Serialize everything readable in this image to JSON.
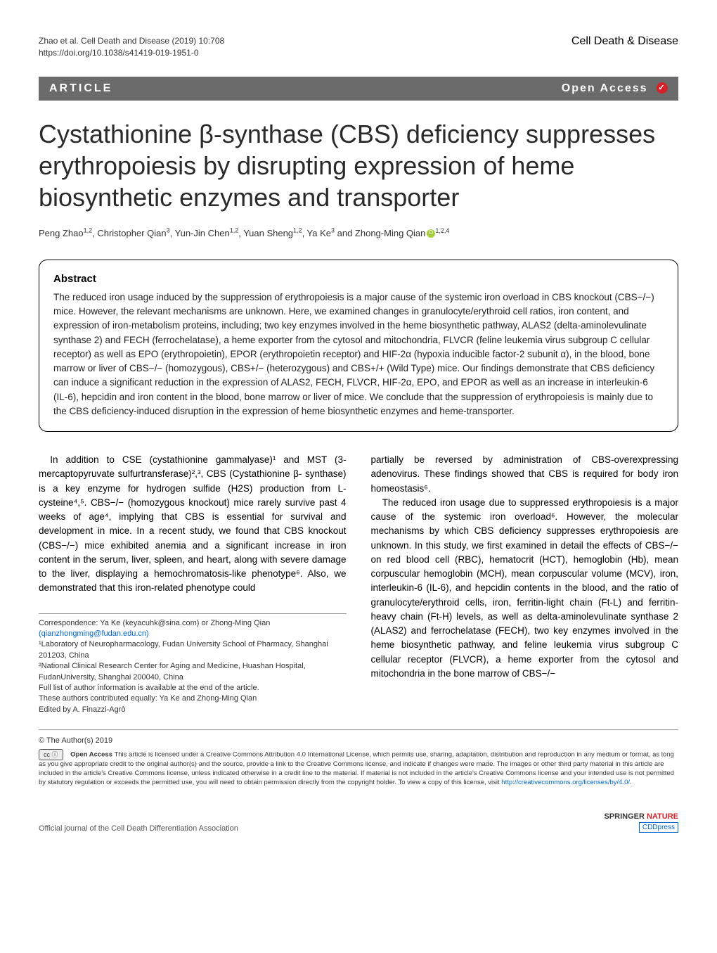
{
  "header": {
    "citation_line1": "Zhao et al. Cell Death and Disease          (2019) 10:708",
    "citation_line2": "https://doi.org/10.1038/s41419-019-1951-0",
    "journal": "Cell Death & Disease"
  },
  "article_bar": {
    "label": "ARTICLE",
    "open_access": "Open Access",
    "bar_bg": "#6b6b6b",
    "bar_fg": "#ffffff"
  },
  "title": "Cystathionine β-synthase (CBS) deficiency suppresses erythropoiesis by disrupting expression of heme biosynthetic enzymes and transporter",
  "authors_html": "Peng Zhao<sup>1,2</sup>, Christopher Qian<sup>3</sup>, Yun-Jin Chen<sup>1,2</sup>, Yuan Sheng<sup>1,2</sup>, Ya Ke<sup>3</sup> and Zhong-Ming Qian",
  "author_last_sup": "1,2,4",
  "abstract": {
    "heading": "Abstract",
    "text": "The reduced iron usage induced by the suppression of erythropoiesis is a major cause of the systemic iron overload in CBS knockout (CBS−/−) mice. However, the relevant mechanisms are unknown. Here, we examined changes in granulocyte/erythroid cell ratios, iron content, and expression of iron-metabolism proteins, including; two key enzymes involved in the heme biosynthetic pathway, ALAS2 (delta-aminolevulinate synthase 2) and FECH (ferrochelatase), a heme exporter from the cytosol and mitochondria, FLVCR (feline leukemia virus subgroup C cellular receptor) as well as EPO (erythropoietin), EPOR (erythropoietin receptor) and HIF-2α (hypoxia inducible factor-2 subunit α), in the blood, bone marrow or liver of CBS−/− (homozygous), CBS+/− (heterozygous) and CBS+/+ (Wild Type) mice. Our findings demonstrate that CBS deficiency can induce a significant reduction in the expression of ALAS2, FECH, FLVCR, HIF-2α, EPO, and EPOR as well as an increase in interleukin-6 (IL-6), hepcidin and iron content in the blood, bone marrow or liver of mice. We conclude that the suppression of erythropoiesis is mainly due to the CBS deficiency-induced disruption in the expression of heme biosynthetic enzymes and heme-transporter."
  },
  "body": {
    "left": {
      "p1": "In addition to CSE (cystathionine gammalyase)¹ and MST (3-mercaptopyruvate sulfurtransferase)²,³, CBS (Cystathionine β- synthase) is a key enzyme for hydrogen sulfide (H2S) production from L-cysteine⁴,⁵. CBS−/− (homozygous knockout) mice rarely survive past 4 weeks of age⁴, implying that CBS is essential for survival and development in mice. In a recent study, we found that CBS knockout (CBS−/−) mice exhibited anemia and a significant increase in iron content in the serum, liver, spleen, and heart, along with severe damage to the liver, displaying a hemochromatosis-like phenotype⁶. Also, we demonstrated that this iron-related phenotype could"
    },
    "right": {
      "p1": "partially be reversed by administration of CBS-overexpressing adenovirus. These findings showed that CBS is required for body iron homeostasis⁶.",
      "p2": "The reduced iron usage due to suppressed erythropoiesis is a major cause of the systemic iron overload⁶. However, the molecular mechanisms by which CBS deficiency suppresses erythropoiesis are unknown. In this study, we first examined in detail the effects of CBS−/− on red blood cell (RBC), hematocrit (HCT), hemoglobin (Hb), mean corpuscular hemoglobin (MCH), mean corpuscular volume (MCV), iron, interleukin-6 (IL-6), and hepcidin contents in the blood, and the ratio of granulocyte/erythroid cells, iron, ferritin-light chain (Ft-L) and ferritin-heavy chain (Ft-H) levels, as well as delta-aminolevulinate synthase 2 (ALAS2) and ferrochelatase (FECH), two key enzymes involved in the heme biosynthetic pathway, and feline leukemia virus subgroup C cellular receptor (FLVCR), a heme exporter from the cytosol and mitochondria in the bone marrow of CBS−/−"
    }
  },
  "correspondence": {
    "line1": "Correspondence: Ya Ke (keyacuhk@sina.com) or Zhong-Ming Qian",
    "email2": "(qianzhongming@fudan.edu.cn)",
    "aff1": "¹Laboratory of Neuropharmacology, Fudan University School of Pharmacy, Shanghai 201203, China",
    "aff2": "²National Clinical Research Center for Aging and Medicine, Huashan Hospital, FudanUniversity, Shanghai 200040, China",
    "full_list": "Full list of author information is available at the end of the article.",
    "equal": "These authors contributed equally: Ya Ke and Zhong-Ming Qian",
    "edited": "Edited by A. Finazzi-Agrò"
  },
  "license": {
    "copyright": "© The Author(s) 2019",
    "cc_label": "cc ⓘ",
    "bold_lead": "Open Access",
    "text": " This article is licensed under a Creative Commons Attribution 4.0 International License, which permits use, sharing, adaptation, distribution and reproduction in any medium or format, as long as you give appropriate credit to the original author(s) and the source, provide a link to the Creative Commons license, and indicate if changes were made. The images or other third party material in this article are included in the article's Creative Commons license, unless indicated otherwise in a credit line to the material. If material is not included in the article's Creative Commons license and your intended use is not permitted by statutory regulation or exceeds the permitted use, you will need to obtain permission directly from the copyright holder. To view a copy of this license, visit ",
    "url": "http://creativecommons.org/licenses/by/4.0/"
  },
  "footer": {
    "left": "Official journal of the Cell Death Differentiation Association",
    "springer": "SPRINGER",
    "nature": "NATURE",
    "cdd": "CDDpress"
  },
  "colors": {
    "accent_red": "#d42028",
    "link_blue": "#0066cc",
    "orcid_green": "#a6ce39",
    "bar_gray": "#6b6b6b"
  },
  "typography": {
    "title_fontsize": 36,
    "body_fontsize": 13.5,
    "abstract_fontsize": 13.5,
    "footer_fontsize": 11,
    "license_fontsize": 9.5
  }
}
